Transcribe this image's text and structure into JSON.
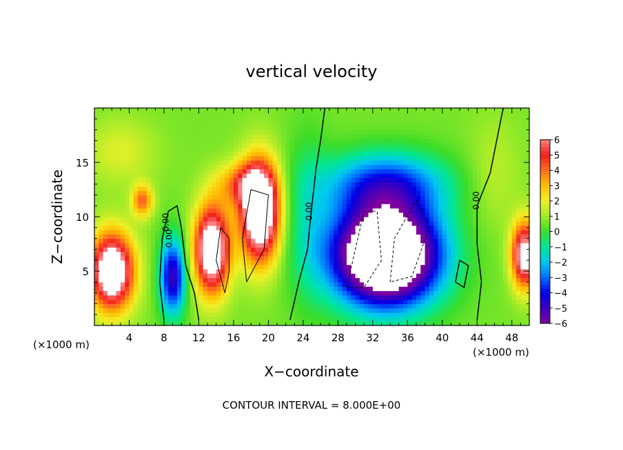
{
  "chart_data": {
    "type": "heatmap",
    "title": "vertical velocity",
    "xlabel": "X−coordinate",
    "ylabel": "Z−coordinate",
    "x_units": "(×1000 m)",
    "x_units_right": "(×1000 m)",
    "xlim": [
      0,
      50
    ],
    "ylim": [
      0,
      20
    ],
    "x_ticks": [
      4,
      8,
      12,
      16,
      20,
      24,
      28,
      32,
      36,
      40,
      44,
      48
    ],
    "y_ticks": [
      5,
      10,
      15
    ],
    "contour_labels": [
      "0.00",
      "0.00",
      "0.00",
      "0.00"
    ],
    "footnote": "CONTOUR INTERVAL = 8.000E+00",
    "colorbar": {
      "ticks": [
        "6",
        "5",
        "4",
        "3",
        "2",
        "1",
        "0",
        "−1",
        "−2",
        "−3",
        "−4",
        "−5",
        "−6"
      ],
      "range": [
        -6,
        6
      ],
      "saturated_high_color": "#ffffff",
      "saturated_low_color": "#ffffff"
    },
    "features": [
      {
        "kind": "updraft",
        "x": 2,
        "z": 5,
        "peak": 7
      },
      {
        "kind": "updraft",
        "x": 5.5,
        "z": 11.5,
        "peak": 3
      },
      {
        "kind": "updraft",
        "x": 14,
        "z": 7,
        "peak": 7
      },
      {
        "kind": "updraft",
        "x": 19,
        "z": 11,
        "peak": 9
      },
      {
        "kind": "downdraft",
        "x": 9,
        "z": 4.5,
        "peak": -5
      },
      {
        "kind": "downdraft",
        "x": 34,
        "z": 7,
        "peak": -12
      },
      {
        "kind": "updraft",
        "x": 49.5,
        "z": 6.5,
        "peak": 7
      }
    ]
  }
}
